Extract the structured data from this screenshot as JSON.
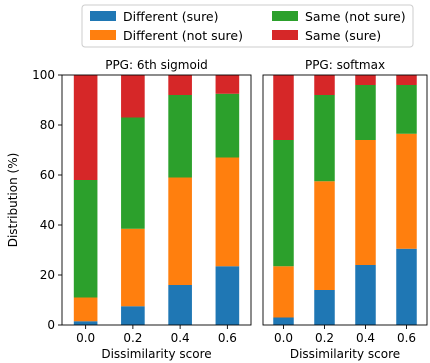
{
  "chart_data": [
    {
      "type": "bar",
      "stacked": true,
      "title": "PPG: 6th sigmoid",
      "xlabel": "Dissimilarity score",
      "ylabel": "Distribution (%)",
      "ylim": [
        0,
        100
      ],
      "yticks": [
        "0",
        "20",
        "40",
        "60",
        "80",
        "100"
      ],
      "categories": [
        "0.0",
        "0.2",
        "0.4",
        "0.6"
      ],
      "series": [
        {
          "name": "Different (sure)",
          "color": "#1f77b4",
          "values": [
            1.5,
            7.5,
            16,
            23.5
          ]
        },
        {
          "name": "Different (not sure)",
          "color": "#ff7f0e",
          "values": [
            9.5,
            31,
            43,
            43.5
          ]
        },
        {
          "name": "Same (not sure)",
          "color": "#2ca02c",
          "values": [
            47,
            44.5,
            33,
            25.5
          ]
        },
        {
          "name": "Same (sure)",
          "color": "#d62728",
          "values": [
            42,
            17,
            8,
            7.5
          ]
        }
      ]
    },
    {
      "type": "bar",
      "stacked": true,
      "title": "PPG: softmax",
      "xlabel": "Dissimilarity score",
      "ylabel": "",
      "ylim": [
        0,
        100
      ],
      "categories": [
        "0.0",
        "0.2",
        "0.4",
        "0.6"
      ],
      "series": [
        {
          "name": "Different (sure)",
          "color": "#1f77b4",
          "values": [
            3,
            14,
            24,
            30.5
          ]
        },
        {
          "name": "Different (not sure)",
          "color": "#ff7f0e",
          "values": [
            20.5,
            43.5,
            50,
            46
          ]
        },
        {
          "name": "Same (not sure)",
          "color": "#2ca02c",
          "values": [
            50.5,
            34.5,
            22,
            19.5
          ]
        },
        {
          "name": "Same (sure)",
          "color": "#d62728",
          "values": [
            26,
            8,
            4,
            4
          ]
        }
      ]
    }
  ],
  "legend": {
    "placement": "top-center",
    "items": [
      {
        "label": "Different (sure)",
        "color": "#1f77b4"
      },
      {
        "label": "Same (not sure)",
        "color": "#2ca02c"
      },
      {
        "label": "Different (not sure)",
        "color": "#ff7f0e"
      },
      {
        "label": "Same (sure)",
        "color": "#d62728"
      }
    ]
  }
}
